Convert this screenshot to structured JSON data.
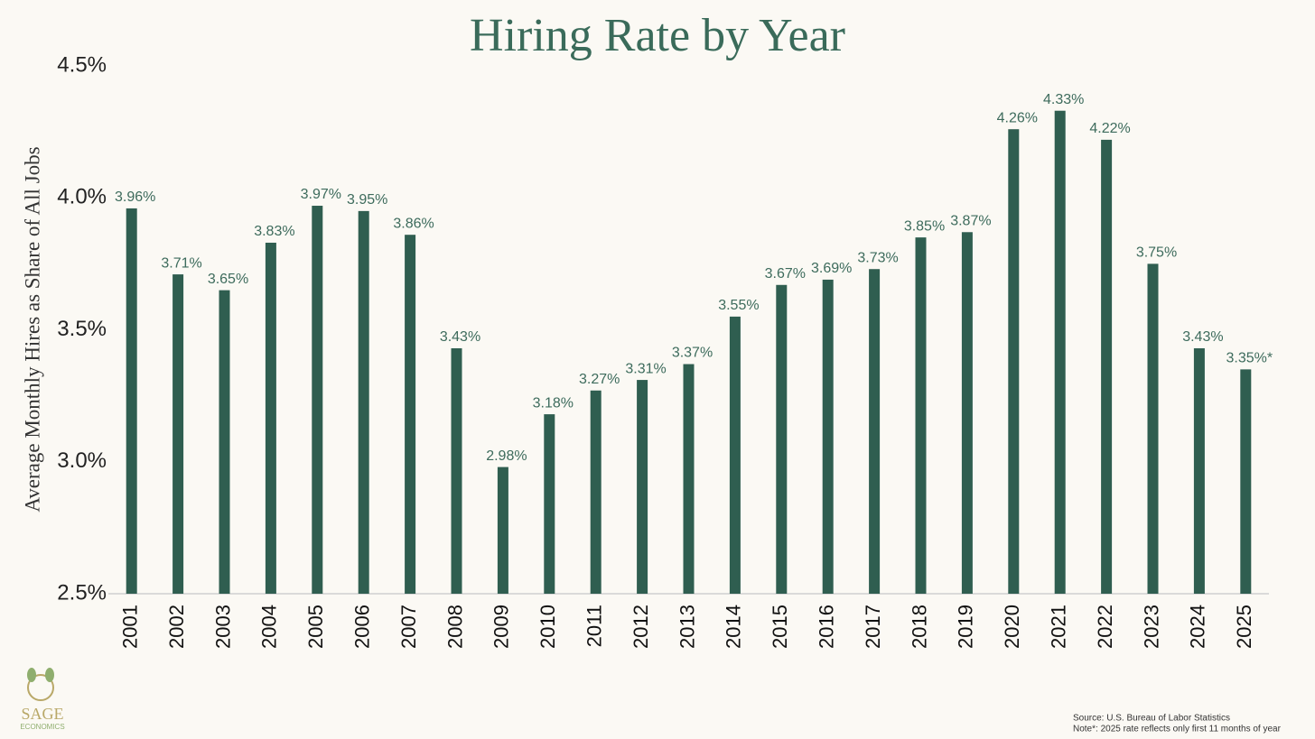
{
  "chart_data": {
    "type": "bar",
    "title": "Hiring Rate by Year",
    "y_label": "Average Monthly Hires as Share of All Jobs",
    "categories": [
      "2001",
      "2002",
      "2003",
      "2004",
      "2005",
      "2006",
      "2007",
      "2008",
      "2009",
      "2010",
      "2011",
      "2012",
      "2013",
      "2014",
      "2015",
      "2016",
      "2017",
      "2018",
      "2019",
      "2020",
      "2021",
      "2022",
      "2023",
      "2024",
      "2025"
    ],
    "values": [
      3.96,
      3.71,
      3.65,
      3.83,
      3.97,
      3.95,
      3.86,
      3.43,
      2.98,
      3.18,
      3.27,
      3.31,
      3.37,
      3.55,
      3.67,
      3.69,
      3.73,
      3.85,
      3.87,
      4.26,
      4.33,
      4.22,
      3.75,
      3.43,
      3.35
    ],
    "value_labels": [
      "3.96%",
      "3.71%",
      "3.65%",
      "3.83%",
      "3.97%",
      "3.95%",
      "3.86%",
      "3.43%",
      "2.98%",
      "3.18%",
      "3.27%",
      "3.31%",
      "3.37%",
      "3.55%",
      "3.67%",
      "3.69%",
      "3.73%",
      "3.85%",
      "3.87%",
      "4.26%",
      "4.33%",
      "4.22%",
      "3.75%",
      "3.43%",
      "3.35%*"
    ],
    "color": "#2f5e50",
    "ylim": [
      2.5,
      4.5
    ],
    "yticks": [
      {
        "value": 2.5,
        "label": "2.5%"
      },
      {
        "value": 3.0,
        "label": "3.0%"
      },
      {
        "value": 3.5,
        "label": "3.5%"
      },
      {
        "value": 4.0,
        "label": "4.0%"
      },
      {
        "value": 4.5,
        "label": "4.5%"
      }
    ],
    "grid": false,
    "source": "Source: U.S. Bureau of Labor Statistics",
    "note": "Note*: 2025 rate reflects only first 11 months of year",
    "logo_name": "SAGE",
    "logo_tagline": "ECONOMICS"
  }
}
